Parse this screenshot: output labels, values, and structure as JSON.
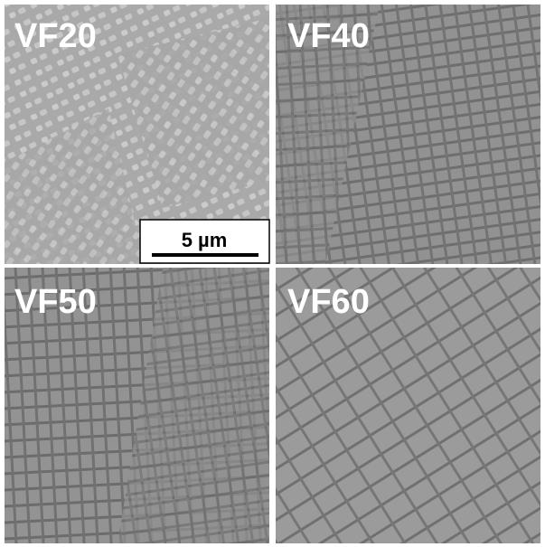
{
  "panels": [
    {
      "label": "VF20"
    },
    {
      "label": "VF40"
    },
    {
      "label": "VF50"
    },
    {
      "label": "VF60"
    }
  ],
  "scale_bar": {
    "label": "5 µm"
  }
}
